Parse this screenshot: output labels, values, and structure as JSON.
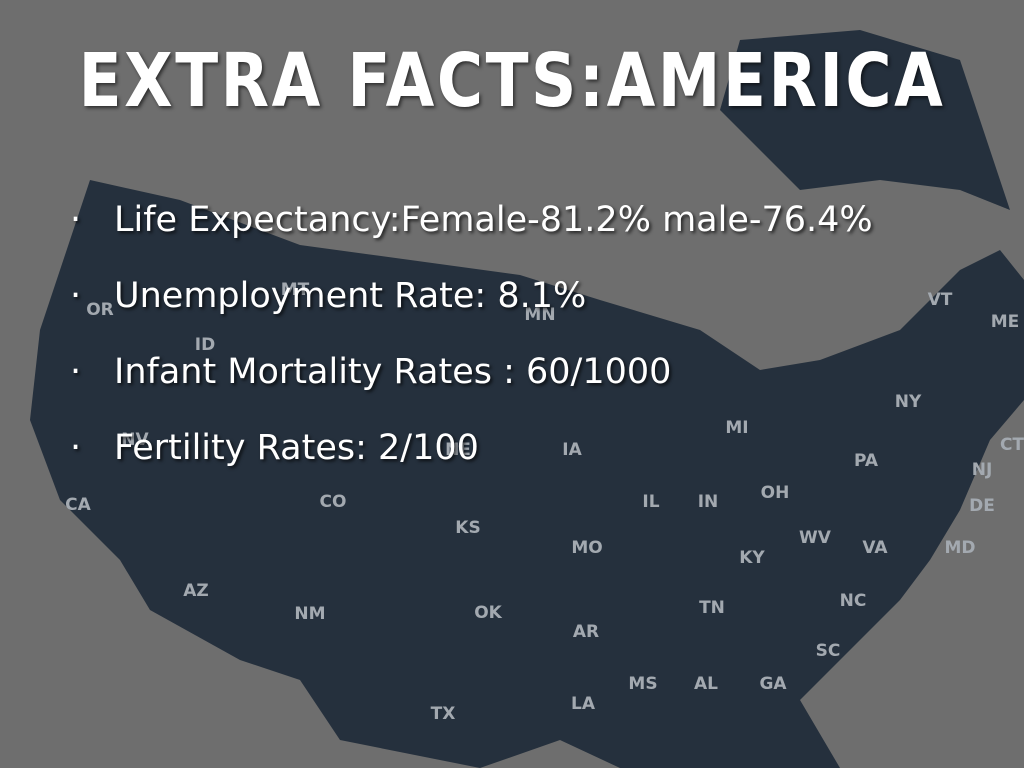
{
  "slide": {
    "title": "EXTRA FACTS:AMERICA",
    "bullets": [
      "Life Expectancy:Female-81.2% male-76.4%",
      "Unemployment Rate: 8.1%",
      "Infant Mortality Rates : 60/1000",
      "Fertility Rates: 2/100"
    ],
    "map_labels": [
      "OR",
      "ID",
      "MT",
      "MN",
      "NV",
      "CA",
      "NE",
      "IA",
      "CO",
      "KS",
      "IL",
      "IN",
      "OH",
      "MI",
      "NY",
      "PA",
      "VT",
      "ME",
      "NJ",
      "CT",
      "DE",
      "MD",
      "WV",
      "VA",
      "KY",
      "MO",
      "AZ",
      "NM",
      "OK",
      "TN",
      "NC",
      "AR",
      "SC",
      "MS",
      "AL",
      "GA",
      "LA",
      "TX"
    ]
  }
}
